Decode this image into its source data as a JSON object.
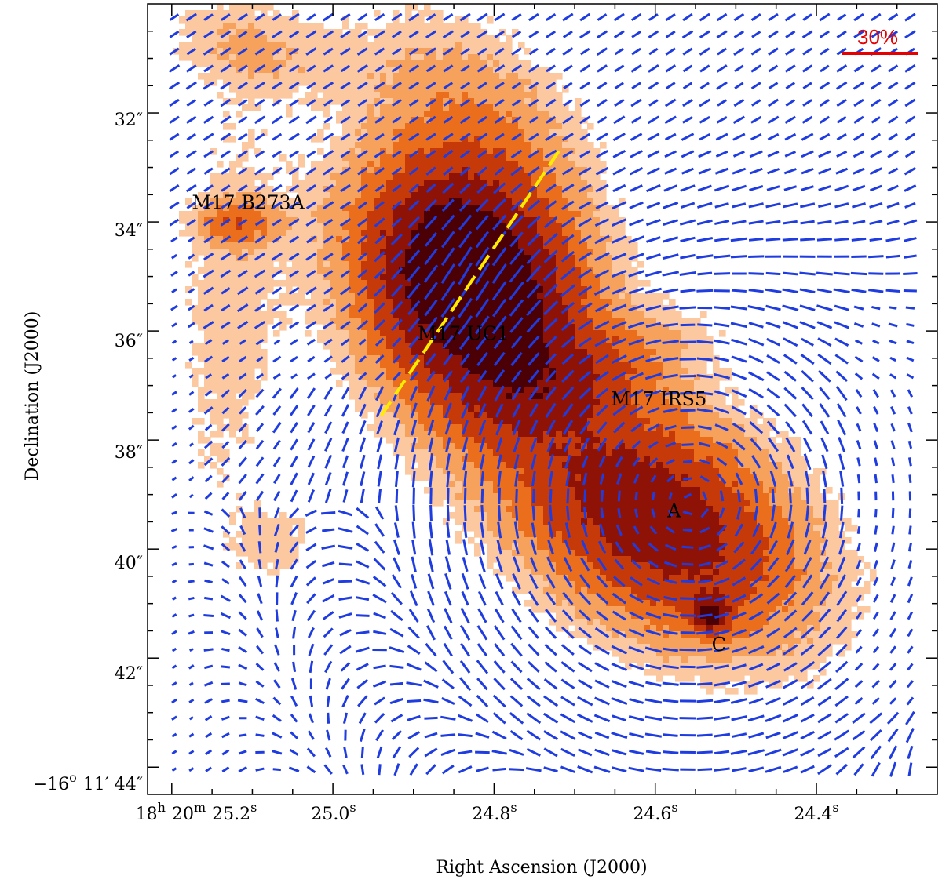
{
  "chart_data": {
    "type": "heatmap",
    "subtype": "polarization-vector-map",
    "xlabel": "Right Ascension (J2000)",
    "ylabel": "Declination (J2000)",
    "x_ticks": [
      {
        "h": "18",
        "m": "20",
        "s": "25.2",
        "sec": 25.2
      },
      {
        "s": "25.0",
        "sec": 25.0
      },
      {
        "s": "24.8",
        "sec": 24.8
      },
      {
        "s": "24.6",
        "sec": 24.6
      },
      {
        "s": "24.4",
        "sec": 24.4
      }
    ],
    "x_unit_h": "h",
    "x_unit_m": "m",
    "x_unit_s": "s",
    "y_ticks": [
      {
        "label": "32″",
        "arcsec": 32
      },
      {
        "label": "34″",
        "arcsec": 34
      },
      {
        "label": "36″",
        "arcsec": 36
      },
      {
        "label": "38″",
        "arcsec": 38
      },
      {
        "label": "40″",
        "arcsec": 40
      },
      {
        "label": "42″",
        "arcsec": 42
      },
      {
        "prefix": "−16",
        "deg_sup": "o",
        "rest": "11′ 44″",
        "arcsec": 44
      }
    ],
    "xlim_sec": [
      25.23,
      24.25
    ],
    "ylim_arcsec": [
      30.0,
      44.5
    ],
    "annotations": [
      {
        "text": "M17 B273A",
        "ra_sec": 25.175,
        "dec_arcsec": 33.65
      },
      {
        "text": "M17 UC1",
        "ra_sec": 24.895,
        "dec_arcsec": 36.05
      },
      {
        "text": "M17 IRS5",
        "ra_sec": 24.655,
        "dec_arcsec": 37.25
      },
      {
        "text": "A",
        "ra_sec": 24.585,
        "dec_arcsec": 39.3
      },
      {
        "text": "C",
        "ra_sec": 24.53,
        "dec_arcsec": 41.75
      }
    ],
    "scale_bar": {
      "label": "30%",
      "fraction": 0.3,
      "color": "#e60000"
    },
    "vector_color": "#1f3ce0",
    "outflow_line": {
      "color": "#ffec00",
      "style": "dashed",
      "start": {
        "ra_sec": 24.94,
        "dec_arcsec": 37.55
      },
      "end": {
        "ra_sec": 24.715,
        "dec_arcsec": 32.6
      }
    },
    "intensity_colormap": [
      "#ffffff",
      "#fcc8a0",
      "#f6a25c",
      "#ea6e1c",
      "#c63a0a",
      "#8e1306",
      "#4a0004"
    ],
    "sources": [
      {
        "name": "M17 UC1",
        "ra_sec": 24.83,
        "dec_arcsec": 35.0,
        "peak": 1.0
      },
      {
        "name": "A",
        "ra_sec": 24.59,
        "dec_arcsec": 39.1,
        "peak": 0.85
      },
      {
        "name": "C",
        "ra_sec": 24.53,
        "dec_arcsec": 41.2,
        "peak": 0.7
      },
      {
        "name": "M17 B273A",
        "ra_sec": 25.12,
        "dec_arcsec": 34.0,
        "peak": 0.35
      }
    ]
  }
}
